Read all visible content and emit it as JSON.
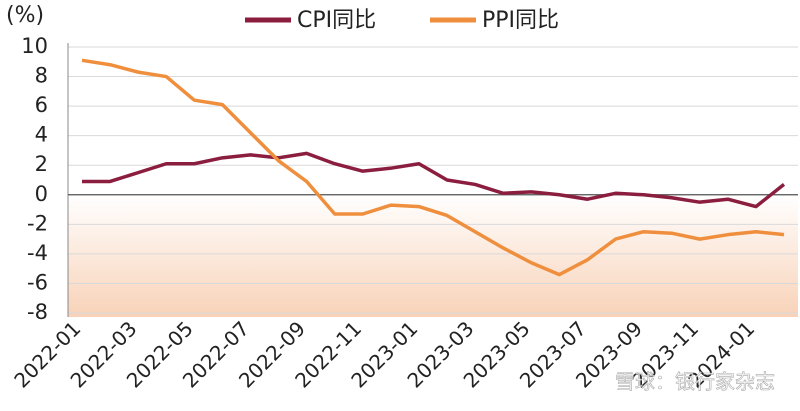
{
  "chart_data": {
    "type": "line",
    "y_label": "(%)",
    "categories": [
      "2022-01",
      null,
      "2022-03",
      null,
      "2022-05",
      null,
      "2022-07",
      null,
      "2022-09",
      null,
      "2022-11",
      null,
      "2023-01",
      null,
      "2023-03",
      null,
      "2023-05",
      null,
      "2023-07",
      null,
      "2023-09",
      null,
      "2023-11",
      null,
      "2024-01",
      null
    ],
    "series": [
      {
        "name": "CPI同比",
        "color": "#8b1e3f",
        "values": [
          0.9,
          0.9,
          1.5,
          2.1,
          2.1,
          2.5,
          2.7,
          2.5,
          2.8,
          2.1,
          1.6,
          1.8,
          2.1,
          1.0,
          0.7,
          0.1,
          0.2,
          0.0,
          -0.3,
          0.1,
          0.0,
          -0.2,
          -0.5,
          -0.3,
          -0.8,
          0.7
        ]
      },
      {
        "name": "PPI同比",
        "color": "#ef8f3e",
        "values": [
          9.1,
          8.8,
          8.3,
          8.0,
          6.4,
          6.1,
          4.2,
          2.3,
          0.9,
          -1.3,
          -1.3,
          -0.7,
          -0.8,
          -1.4,
          -2.5,
          -3.6,
          -4.6,
          -5.4,
          -4.4,
          -3.0,
          -2.5,
          -2.6,
          -3.0,
          -2.7,
          -2.5,
          -2.7
        ]
      }
    ],
    "ylim": [
      -8,
      10
    ],
    "yticks": [
      -8,
      -6,
      -4,
      -2,
      0,
      2,
      4,
      6,
      8,
      10
    ],
    "grid": true,
    "watermark": "雪球：银行家杂志"
  }
}
